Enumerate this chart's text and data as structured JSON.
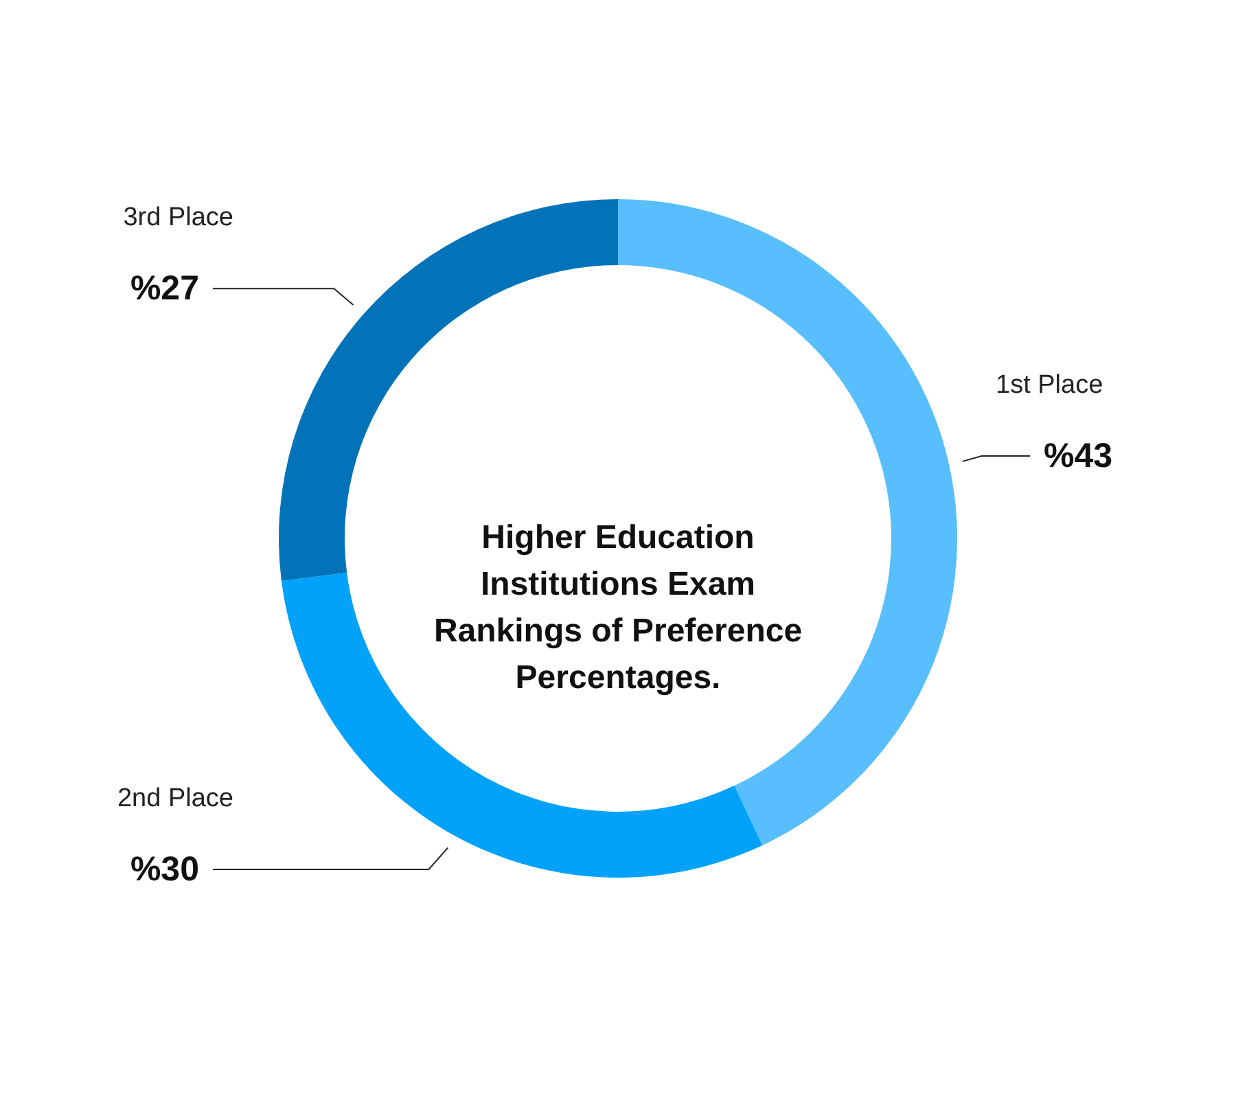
{
  "chart_data": {
    "type": "donut",
    "title": "Higher Education Institutions Exam Rankings of Preference Percentages.",
    "categories": [
      "1st Place",
      "2nd Place",
      "3rd Place"
    ],
    "values": [
      43,
      30,
      27
    ],
    "colors": [
      "#58befd",
      "#02a2fb",
      "#0373b9"
    ],
    "value_labels": [
      "%43",
      "%30",
      "%27"
    ]
  }
}
